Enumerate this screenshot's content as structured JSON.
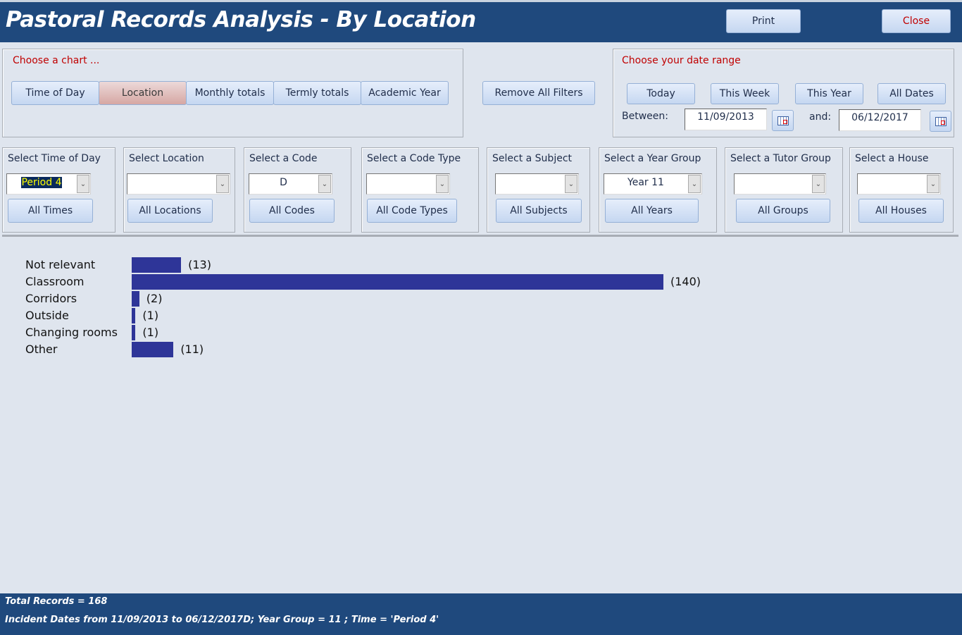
{
  "header": {
    "title": "Pastoral Records Analysis - By Location",
    "print_label": "Print",
    "close_label": "Close"
  },
  "chart_chooser": {
    "label": "Choose a chart ...",
    "tabs": [
      {
        "label": "Time of Day",
        "selected": false
      },
      {
        "label": "Location",
        "selected": true
      },
      {
        "label": "Monthly totals",
        "selected": false
      },
      {
        "label": "Termly totals",
        "selected": false
      },
      {
        "label": "Academic Year",
        "selected": false
      }
    ]
  },
  "remove_filters_label": "Remove All Filters",
  "date_range": {
    "label": "Choose your date range",
    "buttons": [
      "Today",
      "This Week",
      "This Year",
      "All Dates"
    ],
    "between_label": "Between:",
    "and_label": "and:",
    "from": "11/09/2013",
    "to": "06/12/2017",
    "calendar_icon": "calendar-icon"
  },
  "filters": [
    {
      "label": "Select Time of Day",
      "value": "Period 4",
      "button": "All Times"
    },
    {
      "label": "Select Location",
      "value": "",
      "button": "All Locations"
    },
    {
      "label": "Select a Code",
      "value": "D",
      "button": "All Codes"
    },
    {
      "label": "Select a Code Type",
      "value": "",
      "button": "All Code Types"
    },
    {
      "label": "Select a Subject",
      "value": "",
      "button": "All Subjects"
    },
    {
      "label": "Select a Year Group",
      "value": "Year 11",
      "button": "All Years"
    },
    {
      "label": "Select a Tutor Group",
      "value": "",
      "button": "All Groups"
    },
    {
      "label": "Select a House",
      "value": "",
      "button": "All Houses"
    }
  ],
  "chart_data": {
    "type": "bar",
    "orientation": "horizontal",
    "categories": [
      "Not relevant",
      "Classroom",
      "Corridors",
      "Outside",
      "Changing rooms",
      "Other"
    ],
    "values": [
      13,
      140,
      2,
      1,
      1,
      11
    ],
    "value_labels": [
      "(13)",
      "(140)",
      "(2)",
      "(1)",
      "(1)",
      "(11)"
    ],
    "bar_color": "#2e3598",
    "grid": false
  },
  "footer": {
    "total": "Total Records = 168",
    "criteria": "Incident Dates from 11/09/2013 to 06/12/2017D; Year Group = 11 ; Time = 'Period 4'"
  }
}
